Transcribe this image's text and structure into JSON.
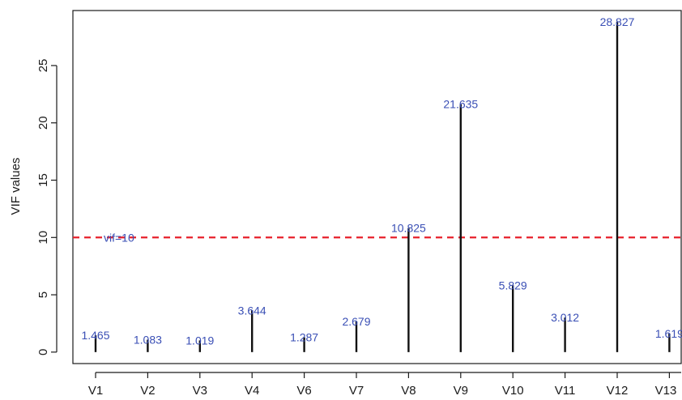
{
  "chart_data": {
    "type": "bar",
    "style": "vertical-lines",
    "categories": [
      "V1",
      "V2",
      "V3",
      "V4",
      "V6",
      "V7",
      "V8",
      "V9",
      "V10",
      "V11",
      "V12",
      "V13"
    ],
    "values": [
      1.465,
      1.083,
      1.019,
      3.644,
      1.287,
      2.679,
      10.825,
      21.635,
      5.829,
      3.012,
      28.827,
      1.619
    ],
    "data_labels": [
      "1.465",
      "1.083",
      "1.019",
      "3.644",
      "1.287",
      "2.679",
      "10.825",
      "21.635",
      "5.829",
      "3.012",
      "28.827",
      "1.619"
    ],
    "title": "",
    "xlabel": "",
    "ylabel": "VIF values",
    "ylim": [
      -1,
      29.8
    ],
    "yticks": [
      0,
      5,
      10,
      15,
      20,
      25
    ],
    "ytick_labels": [
      "0",
      "5",
      "10",
      "15",
      "20",
      "25"
    ],
    "reference_line": {
      "value": 10,
      "label": "vif=10",
      "color": "#e8212b",
      "style": "dashed"
    },
    "colors": {
      "bar": "#111111",
      "data_label": "#3a4fb5",
      "axis": "#1a1a1a"
    },
    "grid": false,
    "legend": "none"
  }
}
